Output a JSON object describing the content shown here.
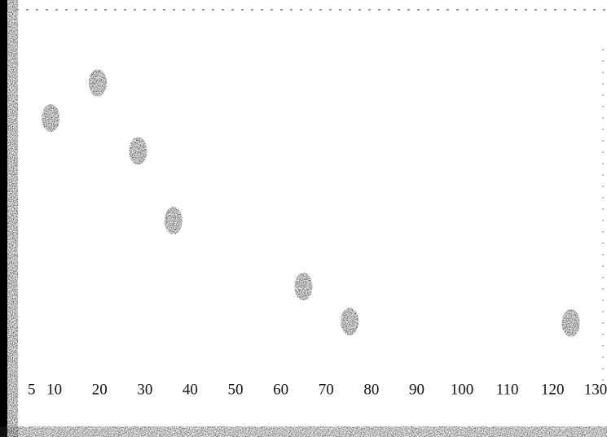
{
  "chart_data": {
    "type": "scatter",
    "x": [
      9.2,
      19.6,
      28.5,
      36.3,
      65,
      75.2,
      124
    ],
    "values": [
      70,
      79.6,
      61,
      42,
      24,
      14.4,
      14
    ],
    "color": "#1a1a1a",
    "xlim": [
      0,
      132
    ],
    "xticks": [
      5,
      10,
      20,
      30,
      40,
      50,
      60,
      70,
      80,
      90,
      100,
      110,
      120,
      130
    ],
    "ylim": [
      0,
      100
    ]
  }
}
